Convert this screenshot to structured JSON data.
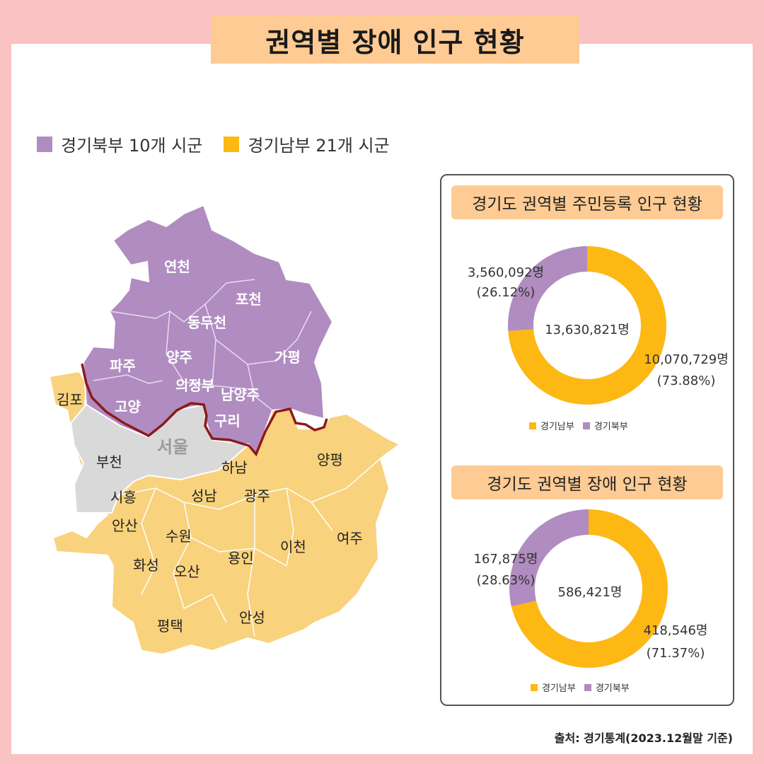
{
  "title": "권역별 장애 인구 현황",
  "legend": [
    {
      "label": "경기북부 10개 시군",
      "color": "#b08cc0"
    },
    {
      "label": "경기남부 21개 시군",
      "color": "#fdb813"
    }
  ],
  "map": {
    "north": [
      "연천",
      "포천",
      "동두천",
      "파주",
      "양주",
      "가평",
      "의정부",
      "남양주",
      "고양",
      "구리"
    ],
    "south": [
      "김포",
      "부천",
      "하남",
      "양평",
      "시흥",
      "성남",
      "광주",
      "안산",
      "수원",
      "이천",
      "여주",
      "화성",
      "오산",
      "용인",
      "평택",
      "안성"
    ],
    "seoul": "서울"
  },
  "colors": {
    "north": "#b08cc0",
    "south": "#fdb813",
    "south_map": "#f8d27c",
    "seoul": "#d9d9d9",
    "border": "#8b1a1a"
  },
  "chart_data": [
    {
      "type": "pie",
      "title": "경기도 권역별 주민등록 인구 현황",
      "total_label": "13,630,821명",
      "series": [
        {
          "name": "경기남부",
          "value": 10070729,
          "value_label": "10,070,729명",
          "percent_label": "(73.88%)"
        },
        {
          "name": "경기북부",
          "value": 3560092,
          "value_label": "3,560,092명",
          "percent_label": "(26.12%)"
        }
      ],
      "legend": [
        "경기남부",
        "경기북부"
      ]
    },
    {
      "type": "pie",
      "title": "경기도 권역별 장애 인구 현황",
      "total_label": "586,421명",
      "series": [
        {
          "name": "경기남부",
          "value": 418546,
          "value_label": "418,546명",
          "percent_label": "(71.37%)"
        },
        {
          "name": "경기북부",
          "value": 167875,
          "value_label": "167,875명",
          "percent_label": "(28.63%)"
        }
      ],
      "legend": [
        "경기남부",
        "경기북부"
      ]
    }
  ],
  "source": "출처: 경기통계(2023.12월말 기준)"
}
